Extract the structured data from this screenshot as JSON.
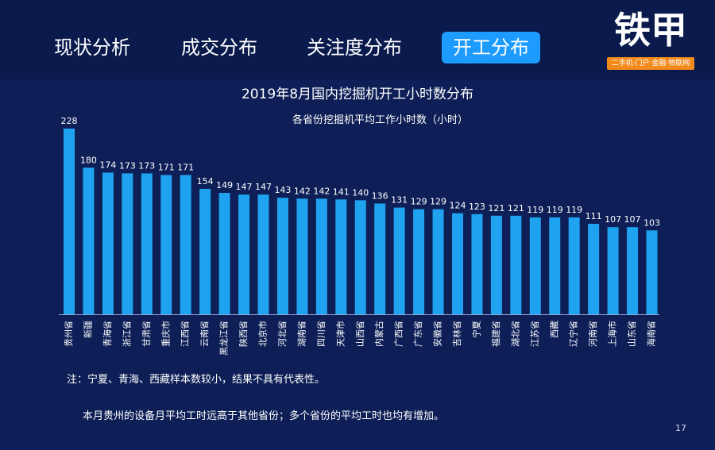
{
  "nav": {
    "tabs": [
      {
        "label": "现状分析",
        "active": false
      },
      {
        "label": "成交分布",
        "active": false
      },
      {
        "label": "关注度分布",
        "active": false
      },
      {
        "label": "开工分布",
        "active": true
      }
    ]
  },
  "logo": {
    "name": "铁甲",
    "tagline": "二手机·门户·金融·物联网"
  },
  "colors": {
    "background": "#0d1f56",
    "bar": "#1fa2ef",
    "active_tab": "#1e9bff",
    "logo_accent": "#f28a1c"
  },
  "chart_data": {
    "type": "bar",
    "title": "2019年8月国内挖掘机开工小时数分布",
    "subtitle": "各省份挖掘机平均工作小时数（小时）",
    "categories": [
      "贵州省",
      "新疆",
      "青海省",
      "浙江省",
      "甘肃省",
      "重庆市",
      "江西省",
      "云南省",
      "黑龙江省",
      "陕西省",
      "北京市",
      "河北省",
      "湖南省",
      "四川省",
      "天津市",
      "山西省",
      "内蒙古",
      "广西省",
      "广东省",
      "安徽省",
      "吉林省",
      "宁夏",
      "福建省",
      "湖北省",
      "江苏省",
      "西藏",
      "辽宁省",
      "河南省",
      "上海市",
      "山东省",
      "海南省"
    ],
    "values": [
      228,
      180,
      174,
      173,
      173,
      171,
      171,
      154,
      149,
      147,
      147,
      143,
      142,
      142,
      141,
      140,
      136,
      131,
      129,
      129,
      124,
      123,
      121,
      121,
      119,
      119,
      119,
      111,
      107,
      107,
      103
    ],
    "ylim": [
      0,
      240
    ],
    "grid": false,
    "legend": "none"
  },
  "footer": {
    "note": "注：宁夏、青海、西藏样本数较小，结果不具有代表性。",
    "summary": "本月贵州的设备月平均工时远高于其他省份；多个省份的平均工时也均有增加。",
    "page_number": "17"
  }
}
